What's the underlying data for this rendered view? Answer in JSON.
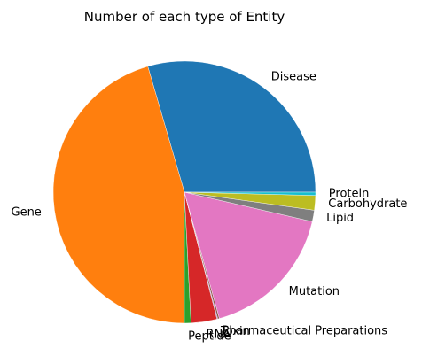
{
  "chart_data": {
    "type": "pie",
    "title": "Number of each type of Entity",
    "start_angle_deg": 0,
    "direction": "counterclockwise",
    "slices": [
      {
        "label": "Disease",
        "value": 29.5,
        "color": "#1f77b4"
      },
      {
        "label": "Gene",
        "value": 45.5,
        "color": "#ff7f0e"
      },
      {
        "label": "Peptide",
        "value": 0.8,
        "color": "#2ca02c"
      },
      {
        "label": "RNA",
        "value": 3.2,
        "color": "#d62728"
      },
      {
        "label": "Toxin",
        "value": 0.1,
        "color": "#9467bd"
      },
      {
        "label": "Pharmaceutical Preparations",
        "value": 0.2,
        "color": "#8c564b"
      },
      {
        "label": "Mutation",
        "value": 17.1,
        "color": "#e377c2"
      },
      {
        "label": "Lipid",
        "value": 1.4,
        "color": "#7f7f7f"
      },
      {
        "label": "Carbohydrate",
        "value": 1.8,
        "color": "#bcbd22"
      },
      {
        "label": "Protein",
        "value": 0.4,
        "color": "#17becf"
      }
    ]
  }
}
